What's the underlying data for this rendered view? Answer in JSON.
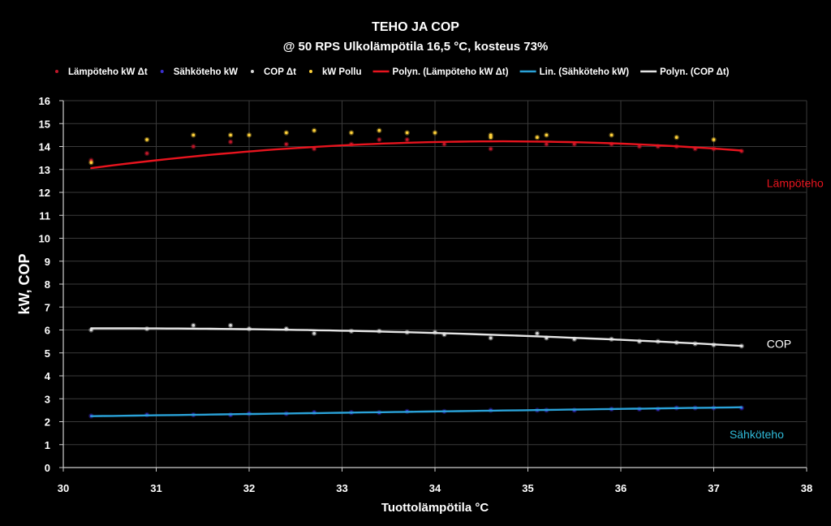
{
  "chart_data": {
    "type": "scatter",
    "title": "TEHO JA COP",
    "subtitle": "@ 50 RPS Ulkolämpötila 16,5 °C,  kosteus 73%",
    "xlabel": "Tuottolämpötila °C",
    "ylabel": "kW, COP",
    "xlim": [
      30,
      38
    ],
    "ylim": [
      0,
      16
    ],
    "x_ticks": [
      "30",
      "31",
      "32",
      "33",
      "34",
      "35",
      "36",
      "37",
      "38"
    ],
    "y_ticks": [
      "0",
      "1",
      "2",
      "3",
      "4",
      "5",
      "6",
      "7",
      "8",
      "9",
      "10",
      "11",
      "12",
      "13",
      "14",
      "15",
      "16"
    ],
    "grid": true,
    "legend_position": "top",
    "series": [
      {
        "name": "Lämpöteho kW Δt",
        "kind": "points",
        "color": "#c0182a",
        "x": [
          30.3,
          30.9,
          31.4,
          31.8,
          32.4,
          32.7,
          33.1,
          33.4,
          33.7,
          34.1,
          34.6,
          35.2,
          35.5,
          35.9,
          36.2,
          36.4,
          36.6,
          36.8,
          37.0,
          37.3
        ],
        "y": [
          13.4,
          13.7,
          14.0,
          14.2,
          14.1,
          13.9,
          14.1,
          14.3,
          14.3,
          14.1,
          13.9,
          14.1,
          14.1,
          14.1,
          14.0,
          14.0,
          14.0,
          13.9,
          13.9,
          13.8
        ]
      },
      {
        "name": "Sähköteho kW",
        "kind": "points",
        "color": "#3a2fd0",
        "x": [
          30.3,
          30.9,
          31.4,
          31.8,
          32.0,
          32.4,
          32.7,
          33.1,
          33.4,
          33.7,
          34.1,
          34.6,
          35.1,
          35.2,
          35.5,
          35.9,
          36.2,
          36.4,
          36.6,
          36.8,
          37.0,
          37.3
        ],
        "y": [
          2.25,
          2.3,
          2.3,
          2.3,
          2.35,
          2.35,
          2.4,
          2.4,
          2.4,
          2.45,
          2.45,
          2.5,
          2.5,
          2.5,
          2.5,
          2.55,
          2.55,
          2.55,
          2.6,
          2.6,
          2.6,
          2.6
        ]
      },
      {
        "name": "COP Δt",
        "kind": "points",
        "color": "#d8d8d8",
        "x": [
          30.3,
          30.9,
          31.4,
          31.8,
          32.0,
          32.4,
          32.7,
          33.1,
          33.4,
          33.7,
          34.0,
          34.1,
          34.6,
          35.1,
          35.2,
          35.5,
          35.9,
          36.2,
          36.4,
          36.6,
          36.8,
          37.0,
          37.3
        ],
        "y": [
          6.0,
          6.05,
          6.2,
          6.2,
          6.05,
          6.05,
          5.85,
          5.95,
          5.95,
          5.9,
          5.9,
          5.8,
          5.65,
          5.85,
          5.65,
          5.6,
          5.6,
          5.5,
          5.5,
          5.45,
          5.4,
          5.35,
          5.3
        ]
      },
      {
        "name": "kW Pollu",
        "kind": "points",
        "color": "#ffd23a",
        "x": [
          30.3,
          30.9,
          31.4,
          31.8,
          32.0,
          32.4,
          32.7,
          33.1,
          33.4,
          33.7,
          34.0,
          34.6,
          34.6,
          35.1,
          35.2,
          35.9,
          36.6,
          37.0
        ],
        "y": [
          13.3,
          14.3,
          14.5,
          14.5,
          14.5,
          14.6,
          14.7,
          14.6,
          14.7,
          14.6,
          14.6,
          14.5,
          14.4,
          14.4,
          14.5,
          14.5,
          14.4,
          14.3
        ]
      },
      {
        "name": "Polyn. (Lämpöteho kW Δt)",
        "kind": "poly",
        "color": "#e8141e",
        "coef": [
          14.175,
          0.1095,
          -0.06
        ],
        "center": 33.8,
        "x_range": [
          30.3,
          37.3
        ]
      },
      {
        "name": "Lin. (Sähköteho kW)",
        "kind": "poly",
        "color": "#2aa2d8",
        "coef": [
          2.24,
          0.0557,
          0
        ],
        "center": 30.3,
        "x_range": [
          30.3,
          37.3
        ]
      },
      {
        "name": "Polyn. (COP Δt)",
        "kind": "poly",
        "color": "#e6e6e6",
        "coef": [
          6.07,
          0.007,
          -0.0166
        ],
        "center": 30.3,
        "x_range": [
          30.3,
          37.3
        ]
      }
    ],
    "annotations": [
      {
        "text": "Lämpöteho",
        "color": "#e8141e",
        "x": 37.5,
        "y": 12.4
      },
      {
        "text": "COP",
        "color": "#ffffff",
        "x": 37.5,
        "y": 5.4
      },
      {
        "text": "Sähköteho",
        "color": "#2fbad8",
        "x": 37.1,
        "y": 1.45
      }
    ]
  }
}
